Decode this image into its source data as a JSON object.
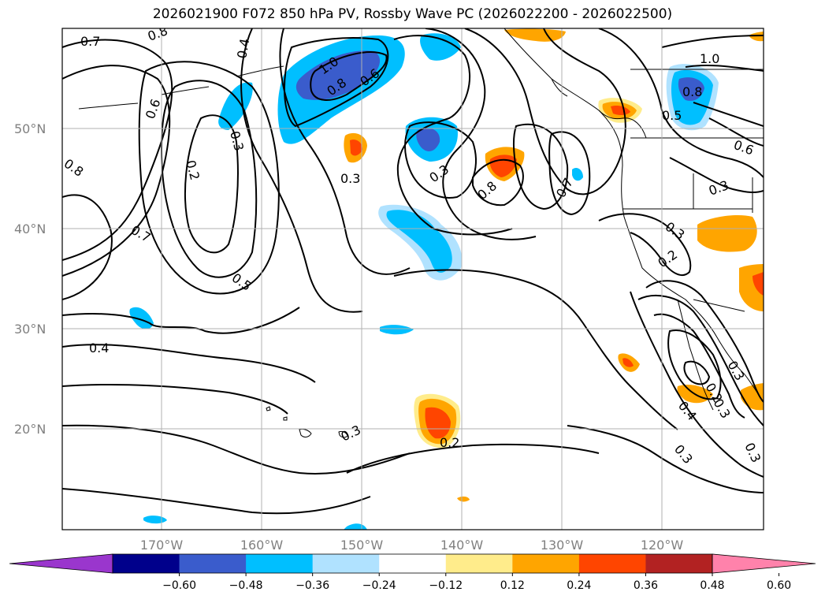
{
  "title": "2026021900 F072 850 hPa PV, Rossby Wave PC (2026022200 - 2026022500)",
  "latitude_labels": [
    "50°N",
    "40°N",
    "30°N",
    "20°N"
  ],
  "longitude_labels": [
    "170°W",
    "160°W",
    "150°W",
    "140°W",
    "130°W",
    "120°W"
  ],
  "colorbar": {
    "colors": [
      "#9a36cd",
      "#00008b",
      "#3a5ccc",
      "#00bfff",
      "#b0e2ff",
      "#ffffff",
      "#ffec8b",
      "#ffa500",
      "#ff4500",
      "#b22222",
      "#ff82ab"
    ],
    "tick_labels": [
      "−0.60",
      "−0.48",
      "−0.36",
      "−0.24",
      "−0.12",
      "0.12",
      "0.24",
      "0.36",
      "0.48",
      "0.60"
    ]
  },
  "contour_labels": [
    "0.7",
    "0.8",
    "0.4",
    "0.6",
    "0.3",
    "0.2",
    "0.8",
    "0.7",
    "0.5",
    "0.4",
    "1.0",
    "0.8",
    "0.6",
    "0.3",
    "0.3",
    "0.3",
    "0.2",
    "0.8",
    "0.7",
    "1.0",
    "0.8",
    "0.5",
    "0.6",
    "0.3",
    "0.3",
    "0.2",
    "0.3",
    "0.2",
    "0.3",
    "0.4",
    "0.3",
    "0.3"
  ]
}
